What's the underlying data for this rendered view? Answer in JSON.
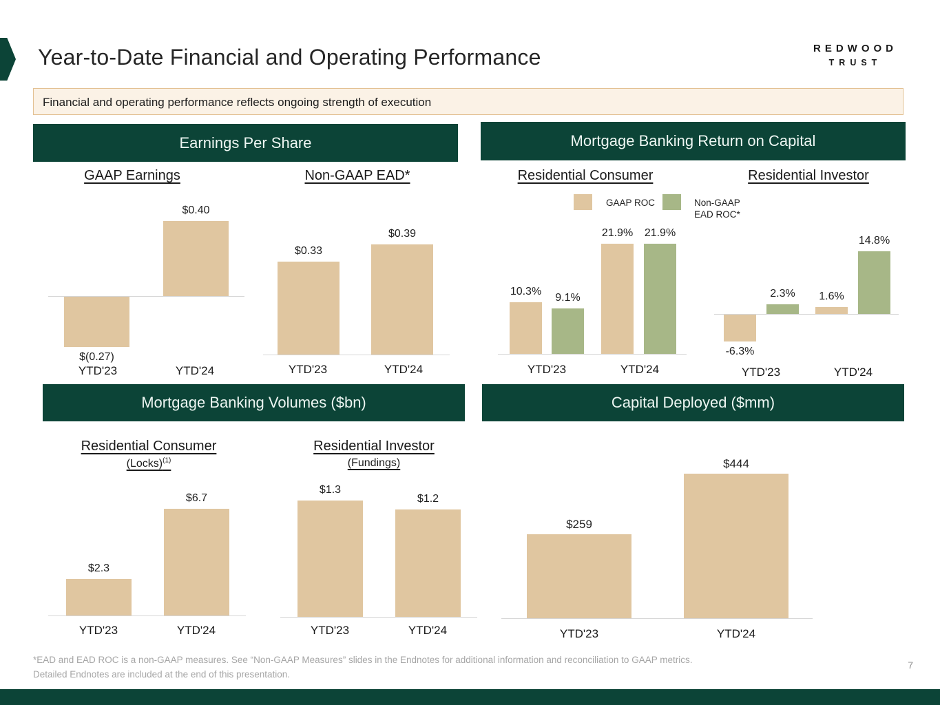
{
  "slide": {
    "title": "Year-to-Date Financial and Operating Performance",
    "logo": {
      "line1": "REDWOOD",
      "line2": "TRUST"
    },
    "banner": "Financial and operating performance reflects ongoing strength of execution",
    "footnote_line1": "*EAD and EAD ROC is a non-GAAP measures. See “Non-GAAP Measures” slides in the Endnotes for additional information and reconciliation to GAAP metrics.",
    "footnote_line2": "Detailed Endnotes are included at the end of this presentation.",
    "page_number": "7"
  },
  "colors": {
    "dark_green": "#0c4437",
    "tan_bar": "#e0c6a0",
    "green_bar": "#a7b787",
    "banner_bg": "#fbf2e6",
    "banner_border": "#e3c193",
    "axis_gray": "#d6d6d6"
  },
  "panels": {
    "eps": {
      "header": "Earnings Per Share",
      "sub_left": "GAAP Earnings",
      "sub_right": "Non-GAAP EAD*"
    },
    "roc": {
      "header": "Mortgage Banking Return on Capital",
      "sub_left": "Residential Consumer",
      "sub_right": "Residential Investor",
      "legend": {
        "gaap": "GAAP ROC",
        "nongaap": "Non-GAAP\nEAD ROC*"
      }
    },
    "volumes": {
      "header": "Mortgage Banking Volumes ($bn)",
      "sub_left": "Residential Consumer",
      "sub_left_line2": "(Locks)",
      "sub_left_sup": "(1)",
      "sub_right": "Residential Investor",
      "sub_right_line2": "(Fundings)"
    },
    "capital": {
      "header": "Capital Deployed ($mm)"
    }
  },
  "chart_data": [
    {
      "id": "gaap_eps",
      "type": "bar",
      "title": "GAAP Earnings",
      "unit": "$ per share",
      "categories": [
        "YTD'23",
        "YTD'24"
      ],
      "values": [
        -0.27,
        0.4
      ],
      "labels": [
        "$(0.27)",
        "$0.40"
      ]
    },
    {
      "id": "ead_eps",
      "type": "bar",
      "title": "Non-GAAP EAD*",
      "unit": "$ per share",
      "categories": [
        "YTD'23",
        "YTD'24"
      ],
      "values": [
        0.33,
        0.39
      ],
      "labels": [
        "$0.33",
        "$0.39"
      ]
    },
    {
      "id": "roc_consumer",
      "type": "grouped_bar",
      "title": "Residential Consumer ROC",
      "unit": "%",
      "categories": [
        "YTD'23",
        "YTD'24"
      ],
      "series": [
        {
          "name": "GAAP ROC",
          "values": [
            10.3,
            21.9
          ],
          "labels": [
            "10.3%",
            "21.9%"
          ]
        },
        {
          "name": "Non-GAAP EAD ROC*",
          "values": [
            9.1,
            21.9
          ],
          "labels": [
            "9.1%",
            "21.9%"
          ]
        }
      ]
    },
    {
      "id": "roc_investor",
      "type": "grouped_bar",
      "title": "Residential Investor ROC",
      "unit": "%",
      "categories": [
        "YTD'23",
        "YTD'24"
      ],
      "series": [
        {
          "name": "GAAP ROC",
          "values": [
            -6.3,
            1.6
          ],
          "labels": [
            "-6.3%",
            "1.6%"
          ]
        },
        {
          "name": "Non-GAAP EAD ROC*",
          "values": [
            2.3,
            14.8
          ],
          "labels": [
            "2.3%",
            "14.8%"
          ]
        }
      ]
    },
    {
      "id": "locks",
      "type": "bar",
      "title": "Residential Consumer (Locks)",
      "unit": "$bn",
      "categories": [
        "YTD'23",
        "YTD'24"
      ],
      "values": [
        2.3,
        6.7
      ],
      "labels": [
        "$2.3",
        "$6.7"
      ]
    },
    {
      "id": "fundings",
      "type": "bar",
      "title": "Residential Investor (Fundings)",
      "unit": "$bn",
      "categories": [
        "YTD'23",
        "YTD'24"
      ],
      "values": [
        1.3,
        1.2
      ],
      "labels": [
        "$1.3",
        "$1.2"
      ]
    },
    {
      "id": "capital",
      "type": "bar",
      "title": "Capital Deployed",
      "unit": "$mm",
      "categories": [
        "YTD'23",
        "YTD'24"
      ],
      "values": [
        259,
        444
      ],
      "labels": [
        "$259",
        "$444"
      ]
    }
  ]
}
